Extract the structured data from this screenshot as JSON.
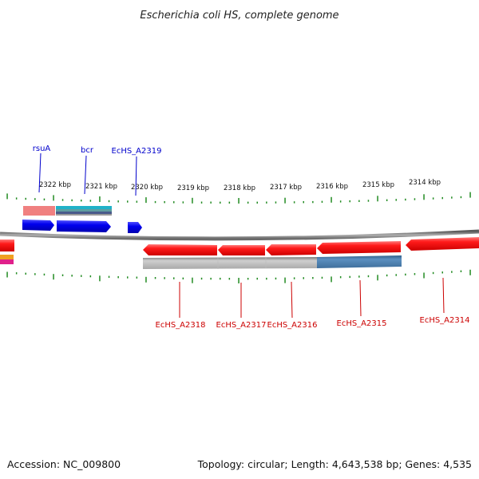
{
  "title": "Escherichia coli HS, complete genome",
  "footer": {
    "accession": "Accession: NC_009800",
    "topology": "Topology: circular; Length: 4,643,538 bp; Genes: 4,535"
  },
  "colors": {
    "forward_gene": "#0000ee",
    "reverse_gene": "#ee0000",
    "forward_label": "#0000cc",
    "reverse_label": "#cc0000",
    "tick": "#228b22",
    "backbone": "#8a8a8a"
  },
  "ticks": [
    {
      "label": "2322 kbp"
    },
    {
      "label": "2321 kbp"
    },
    {
      "label": "2320 kbp"
    },
    {
      "label": "2319 kbp"
    },
    {
      "label": "2318 kbp"
    },
    {
      "label": "2317 kbp"
    },
    {
      "label": "2316 kbp"
    },
    {
      "label": "2315 kbp"
    },
    {
      "label": "2314 kbp"
    }
  ],
  "forward_genes": [
    {
      "name": "rsuA"
    },
    {
      "name": "bcr"
    },
    {
      "name": "EcHS_A2319"
    }
  ],
  "reverse_genes": [
    {
      "name": "EcHS_A2318"
    },
    {
      "name": "EcHS_A2317"
    },
    {
      "name": "EcHS_A2316"
    },
    {
      "name": "EcHS_A2315"
    },
    {
      "name": "EcHS_A2314"
    }
  ]
}
